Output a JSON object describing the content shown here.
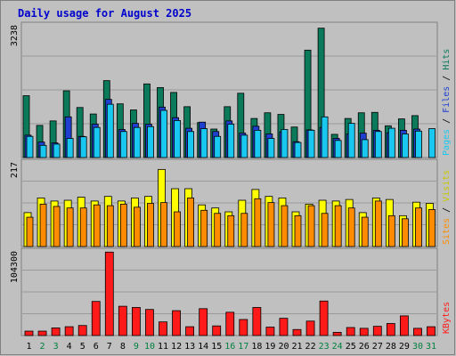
{
  "title": "Daily usage for August 2025",
  "days": [
    "1",
    "2",
    "3",
    "4",
    "5",
    "6",
    "7",
    "8",
    "9",
    "10",
    "11",
    "12",
    "13",
    "14",
    "15",
    "16",
    "17",
    "18",
    "19",
    "20",
    "21",
    "22",
    "23",
    "24",
    "25",
    "26",
    "27",
    "28",
    "29",
    "30",
    "31"
  ],
  "weekend_days": [
    "2",
    "3",
    "9",
    "10",
    "16",
    "17",
    "23",
    "24",
    "30",
    "31"
  ],
  "colors": {
    "background": "#c0c0c0",
    "title": "#0000cc",
    "hits": "#0a7a5a",
    "files": "#1e3fd0",
    "pages": "#19c8f0",
    "visits": "#ffff00",
    "sites": "#ff8c00",
    "kbytes": "#ff1a1a",
    "day_label": "#000000",
    "weekend_label": "#008040"
  },
  "chart_data": [
    {
      "type": "bar",
      "name": "hits-files-pages",
      "ymax_label": "3238",
      "ylim": [
        0,
        3238
      ],
      "legend": [
        "Pages",
        "Files",
        "Hits"
      ],
      "series": [
        {
          "name": "Hits",
          "values": [
            1520,
            790,
            900,
            1640,
            1230,
            1070,
            1890,
            1320,
            1170,
            1810,
            1720,
            1600,
            1250,
            860,
            700,
            1250,
            1580,
            960,
            1100,
            1060,
            750,
            2640,
            3180,
            570,
            960,
            1100,
            1110,
            780,
            950,
            1030,
            0
          ]
        },
        {
          "name": "Files",
          "values": [
            550,
            380,
            360,
            1000,
            520,
            820,
            1430,
            690,
            840,
            820,
            1240,
            980,
            720,
            870,
            640,
            900,
            600,
            770,
            580,
            630,
            390,
            680,
            740,
            470,
            580,
            600,
            670,
            610,
            670,
            700,
            0
          ]
        },
        {
          "name": "Pages",
          "values": [
            520,
            300,
            330,
            470,
            510,
            740,
            1310,
            640,
            740,
            760,
            1160,
            910,
            640,
            710,
            520,
            820,
            550,
            670,
            470,
            690,
            370,
            670,
            1000,
            420,
            840,
            440,
            640,
            720,
            580,
            650,
            710
          ]
        }
      ]
    },
    {
      "type": "bar",
      "name": "visits-sites",
      "ymax_label": "217",
      "ylim": [
        0,
        217
      ],
      "legend": [
        "Sites",
        "Visits"
      ],
      "series": [
        {
          "name": "Visits",
          "values": [
            88,
            126,
            118,
            120,
            128,
            118,
            130,
            118,
            126,
            130,
            200,
            150,
            150,
            108,
            100,
            90,
            120,
            148,
            130,
            126,
            90,
            110,
            120,
            118,
            122,
            88,
            126,
            122,
            80,
            115,
            112
          ]
        },
        {
          "name": "Sites",
          "values": [
            76,
            110,
            104,
            100,
            100,
            108,
            106,
            110,
            102,
            112,
            114,
            90,
            126,
            94,
            86,
            80,
            86,
            124,
            114,
            106,
            80,
            106,
            86,
            106,
            100,
            76,
            118,
            80,
            72,
            100,
            96
          ]
        }
      ]
    },
    {
      "type": "bar",
      "name": "kbytes",
      "ymax_label": "104300",
      "ylim": [
        0,
        104300
      ],
      "legend": [
        "KBytes"
      ],
      "series": [
        {
          "name": "KBytes",
          "values": [
            5500,
            5500,
            9500,
            11000,
            12500,
            42500,
            104000,
            36500,
            35000,
            32500,
            17000,
            31000,
            11000,
            33500,
            12000,
            29000,
            20000,
            35000,
            10500,
            21500,
            7500,
            18000,
            43000,
            4000,
            10000,
            9000,
            11500,
            15000,
            24500,
            9000,
            11000
          ]
        }
      ]
    }
  ]
}
